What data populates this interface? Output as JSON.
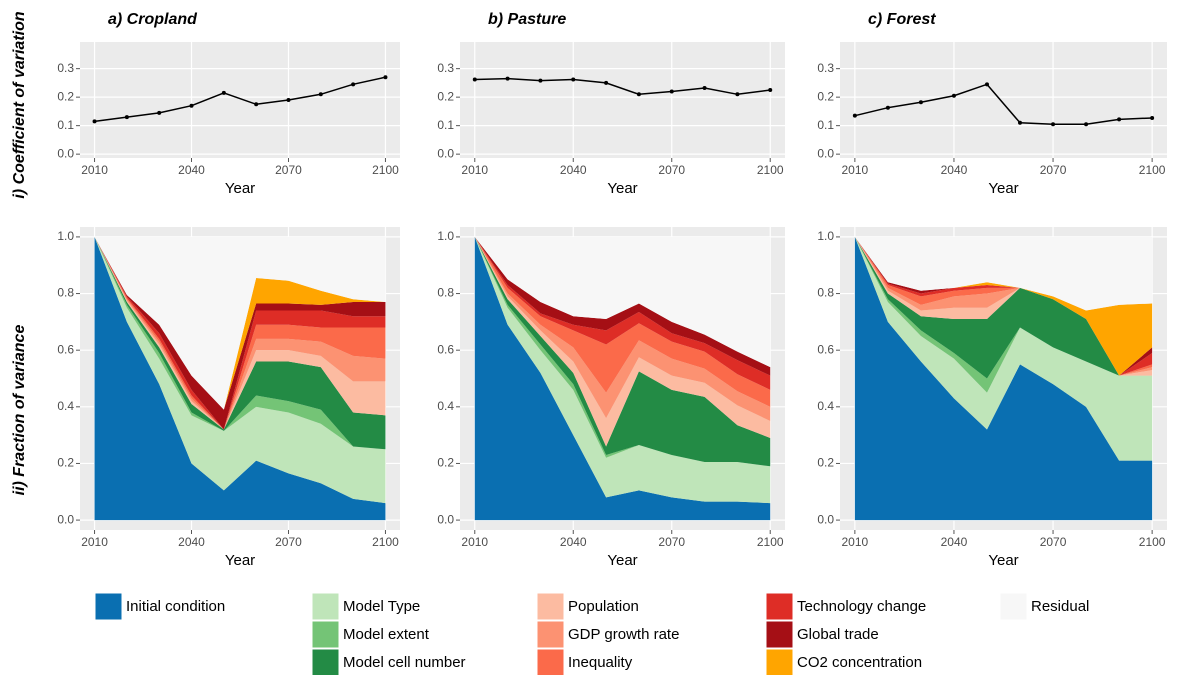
{
  "row_labels": [
    "i) Coefficient of variation",
    "ii) Fraction of variance"
  ],
  "chart_data": [
    {
      "type": "line",
      "title": "a) Cropland",
      "xlabel": "Year",
      "x": [
        2010,
        2020,
        2030,
        2040,
        2050,
        2060,
        2070,
        2080,
        2090,
        2100
      ],
      "values": [
        0.115,
        0.13,
        0.145,
        0.17,
        0.215,
        0.175,
        0.19,
        0.21,
        0.245,
        0.27
      ],
      "color": "#000000",
      "xlim": [
        2005.5,
        2104.5
      ],
      "xticks": [
        2010,
        2040,
        2070,
        2100
      ],
      "ylim": [
        -0.0135,
        0.3935
      ],
      "yticks": [
        {
          "value": 0,
          "label": "0.0"
        },
        0.1,
        0.2,
        0.3
      ],
      "grid": true
    },
    {
      "type": "line",
      "title": "b) Pasture",
      "xlabel": "Year",
      "x": [
        2010,
        2020,
        2030,
        2040,
        2050,
        2060,
        2070,
        2080,
        2090,
        2100
      ],
      "values": [
        0.262,
        0.265,
        0.258,
        0.262,
        0.25,
        0.21,
        0.22,
        0.232,
        0.21,
        0.225
      ],
      "color": "#000000",
      "xlim": [
        2005.5,
        2104.5
      ],
      "xticks": [
        2010,
        2040,
        2070,
        2100
      ],
      "ylim": [
        -0.0135,
        0.3935
      ],
      "yticks": [
        {
          "value": 0,
          "label": "0.0"
        },
        0.1,
        0.2,
        0.3
      ],
      "grid": true
    },
    {
      "type": "line",
      "title": "c) Forest",
      "xlabel": "Year",
      "x": [
        2010,
        2020,
        2030,
        2040,
        2050,
        2060,
        2070,
        2080,
        2090,
        2100
      ],
      "values": [
        0.135,
        0.163,
        0.182,
        0.205,
        0.245,
        0.11,
        0.105,
        0.105,
        0.122,
        0.127
      ],
      "color": "#000000",
      "xlim": [
        2005.5,
        2104.5
      ],
      "xticks": [
        2010,
        2040,
        2070,
        2100
      ],
      "ylim": [
        -0.0135,
        0.3935
      ],
      "yticks": [
        {
          "value": 0,
          "label": "0.0"
        },
        0.1,
        0.2,
        0.3
      ],
      "grid": true
    },
    {
      "type": "stacked_area",
      "xlabel": "Year",
      "x": [
        2010,
        2020,
        2030,
        2040,
        2050,
        2060,
        2070,
        2080,
        2090,
        2100
      ],
      "xlim": [
        2005.5,
        2104.5
      ],
      "xticks": [
        2010,
        2040,
        2070,
        2100
      ],
      "ylim": [
        -0.035,
        1.035
      ],
      "yticks": [
        {
          "value": 0,
          "label": "0.0"
        },
        0.2,
        0.4,
        0.6,
        0.8,
        {
          "value": 1,
          "label": "1.0"
        }
      ],
      "grid": true,
      "series": [
        {
          "name": "Initial condition",
          "color": "#0a6fb1",
          "values": [
            1,
            0.7,
            0.48,
            0.2,
            0.105,
            0.21,
            0.165,
            0.13,
            0.075,
            0.06
          ]
        },
        {
          "name": "Model Type",
          "color": "#bfe5b9",
          "values": [
            0,
            0.05,
            0.09,
            0.17,
            0.21,
            0.19,
            0.215,
            0.21,
            0.185,
            0.19
          ]
        },
        {
          "name": "Model extent",
          "color": "#74c476",
          "values": [
            0,
            0.01,
            0.02,
            0.01,
            0,
            0.04,
            0.04,
            0.05,
            0,
            0
          ]
        },
        {
          "name": "Model cell number",
          "color": "#238b45",
          "values": [
            0,
            0.01,
            0.02,
            0.03,
            0.005,
            0.12,
            0.14,
            0.15,
            0.12,
            0.12
          ]
        },
        {
          "name": "Population",
          "color": "#fcbba1",
          "values": [
            0,
            0.005,
            0.01,
            0.01,
            0,
            0.04,
            0.04,
            0.04,
            0.11,
            0.12
          ]
        },
        {
          "name": "GDP growth rate",
          "color": "#fc9272",
          "values": [
            0,
            0.005,
            0.01,
            0.01,
            0,
            0.04,
            0.04,
            0.05,
            0.09,
            0.08
          ]
        },
        {
          "name": "Inequality",
          "color": "#fb6a4a",
          "values": [
            0,
            0.005,
            0.01,
            0.01,
            0,
            0.05,
            0.05,
            0.05,
            0.1,
            0.11
          ]
        },
        {
          "name": "Technology change",
          "color": "#de2d26",
          "values": [
            0,
            0.005,
            0.02,
            0.02,
            0,
            0.05,
            0.05,
            0.06,
            0.04,
            0.04
          ]
        },
        {
          "name": "Global trade",
          "color": "#a50f15",
          "values": [
            0,
            0.005,
            0.03,
            0.05,
            0.07,
            0.025,
            0.025,
            0.02,
            0.05,
            0.05
          ]
        },
        {
          "name": "CO2 concentration",
          "color": "#ffa500",
          "values": [
            0,
            0,
            0,
            0,
            0,
            0.09,
            0.08,
            0.05,
            0.01,
            0
          ]
        },
        {
          "name": "Residual",
          "color": "#f7f7f7",
          "values": [
            0,
            0.205,
            0.31,
            0.49,
            0.61,
            0.145,
            0.155,
            0.19,
            0.22,
            0.23
          ]
        }
      ]
    },
    {
      "type": "stacked_area",
      "xlabel": "Year",
      "x": [
        2010,
        2020,
        2030,
        2040,
        2050,
        2060,
        2070,
        2080,
        2090,
        2100
      ],
      "xlim": [
        2005.5,
        2104.5
      ],
      "xticks": [
        2010,
        2040,
        2070,
        2100
      ],
      "ylim": [
        -0.035,
        1.035
      ],
      "yticks": [
        {
          "value": 0,
          "label": "0.0"
        },
        0.2,
        0.4,
        0.6,
        0.8,
        {
          "value": 1,
          "label": "1.0"
        }
      ],
      "grid": true,
      "series": [
        {
          "name": "Initial condition",
          "color": "#0a6fb1",
          "values": [
            1,
            0.69,
            0.52,
            0.3,
            0.08,
            0.105,
            0.08,
            0.065,
            0.065,
            0.06
          ]
        },
        {
          "name": "Model Type",
          "color": "#bfe5b9",
          "values": [
            0,
            0.06,
            0.08,
            0.16,
            0.14,
            0.16,
            0.15,
            0.14,
            0.14,
            0.13
          ]
        },
        {
          "name": "Model extent",
          "color": "#74c476",
          "values": [
            0,
            0.01,
            0.02,
            0.02,
            0.01,
            0,
            0,
            0,
            0,
            0
          ]
        },
        {
          "name": "Model cell number",
          "color": "#238b45",
          "values": [
            0,
            0.02,
            0.03,
            0.04,
            0.03,
            0.26,
            0.23,
            0.23,
            0.13,
            0.1
          ]
        },
        {
          "name": "Population",
          "color": "#fcbba1",
          "values": [
            0,
            0.01,
            0.02,
            0.04,
            0.1,
            0.05,
            0.05,
            0.05,
            0.07,
            0.06
          ]
        },
        {
          "name": "GDP growth rate",
          "color": "#fc9272",
          "values": [
            0,
            0.01,
            0.02,
            0.05,
            0.09,
            0.06,
            0.06,
            0.05,
            0.05,
            0.05
          ]
        },
        {
          "name": "Inequality",
          "color": "#fb6a4a",
          "values": [
            0,
            0.02,
            0.03,
            0.06,
            0.17,
            0.06,
            0.06,
            0.06,
            0.06,
            0.06
          ]
        },
        {
          "name": "Technology change",
          "color": "#de2d26",
          "values": [
            0,
            0.01,
            0.01,
            0.02,
            0.05,
            0.04,
            0.03,
            0.03,
            0.05,
            0.05
          ]
        },
        {
          "name": "Global trade",
          "color": "#a50f15",
          "values": [
            0,
            0.02,
            0.04,
            0.03,
            0.04,
            0.03,
            0.04,
            0.03,
            0.03,
            0.03
          ]
        },
        {
          "name": "CO2 concentration",
          "color": "#ffa500",
          "values": [
            0,
            0,
            0,
            0,
            0,
            0,
            0,
            0,
            0,
            0
          ]
        },
        {
          "name": "Residual",
          "color": "#f7f7f7",
          "values": [
            0,
            0.15,
            0.23,
            0.28,
            0.29,
            0.235,
            0.3,
            0.345,
            0.405,
            0.46
          ]
        }
      ]
    },
    {
      "type": "stacked_area",
      "xlabel": "Year",
      "x": [
        2010,
        2020,
        2030,
        2040,
        2050,
        2060,
        2070,
        2080,
        2090,
        2100
      ],
      "xlim": [
        2005.5,
        2104.5
      ],
      "xticks": [
        2010,
        2040,
        2070,
        2100
      ],
      "ylim": [
        -0.035,
        1.035
      ],
      "yticks": [
        {
          "value": 0,
          "label": "0.0"
        },
        0.2,
        0.4,
        0.6,
        0.8,
        {
          "value": 1,
          "label": "1.0"
        }
      ],
      "grid": true,
      "series": [
        {
          "name": "Initial condition",
          "color": "#0a6fb1",
          "values": [
            1,
            0.7,
            0.56,
            0.43,
            0.32,
            0.55,
            0.48,
            0.4,
            0.21,
            0.21
          ]
        },
        {
          "name": "Model Type",
          "color": "#bfe5b9",
          "values": [
            0,
            0.07,
            0.09,
            0.14,
            0.13,
            0.13,
            0.13,
            0.16,
            0.3,
            0.3
          ]
        },
        {
          "name": "Model extent",
          "color": "#74c476",
          "values": [
            0,
            0.01,
            0.02,
            0.02,
            0.05,
            0,
            0,
            0,
            0,
            0
          ]
        },
        {
          "name": "Model cell number",
          "color": "#238b45",
          "values": [
            0,
            0.02,
            0.05,
            0.12,
            0.21,
            0.14,
            0.17,
            0.15,
            0,
            0
          ]
        },
        {
          "name": "Population",
          "color": "#fcbba1",
          "values": [
            0,
            0.01,
            0.02,
            0.04,
            0.04,
            0,
            0,
            0,
            0,
            0.02
          ]
        },
        {
          "name": "GDP growth rate",
          "color": "#fc9272",
          "values": [
            0,
            0.01,
            0.02,
            0.04,
            0.05,
            0,
            0,
            0,
            0,
            0.01
          ]
        },
        {
          "name": "Inequality",
          "color": "#fb6a4a",
          "values": [
            0,
            0.01,
            0.03,
            0.02,
            0.02,
            0,
            0,
            0,
            0,
            0.01
          ]
        },
        {
          "name": "Technology change",
          "color": "#de2d26",
          "values": [
            0,
            0.005,
            0.01,
            0.01,
            0.01,
            0,
            0,
            0,
            0,
            0.04
          ]
        },
        {
          "name": "Global trade",
          "color": "#a50f15",
          "values": [
            0,
            0.005,
            0.01,
            0,
            0,
            0,
            0,
            0,
            0,
            0.02
          ]
        },
        {
          "name": "CO2 concentration",
          "color": "#ffa500",
          "values": [
            0,
            0,
            0,
            0,
            0.01,
            0,
            0.01,
            0.03,
            0.25,
            0.155
          ]
        },
        {
          "name": "Residual",
          "color": "#f7f7f7",
          "values": [
            0,
            0.16,
            0.19,
            0.18,
            0.16,
            0.18,
            0.21,
            0.26,
            0.24,
            0.235
          ]
        }
      ]
    }
  ]
}
